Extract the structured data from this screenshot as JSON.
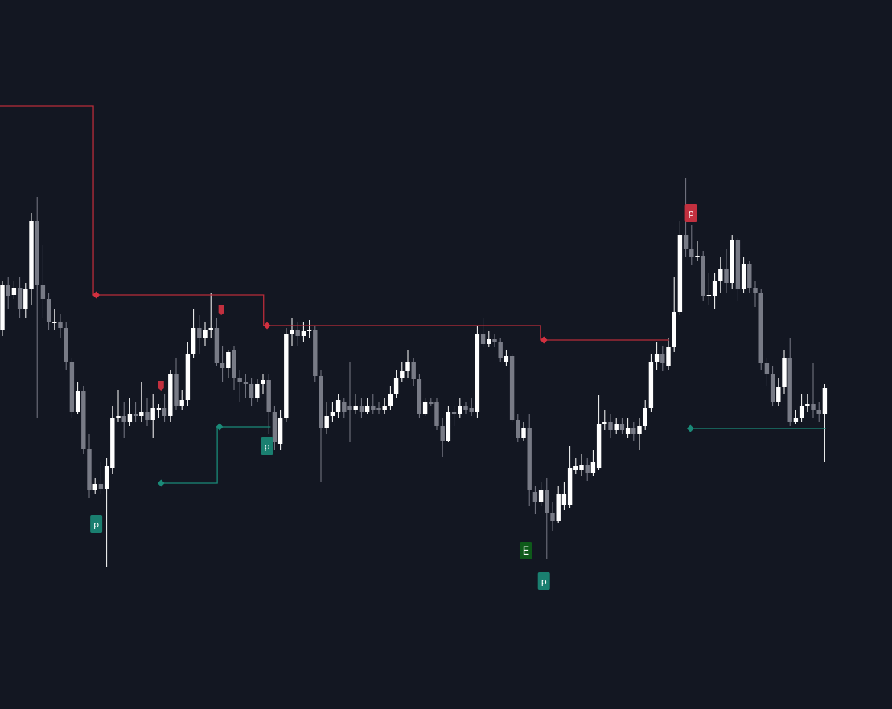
{
  "chart_data": {
    "type": "candlestick",
    "ylim": [
      0,
      882
    ],
    "up_color": "#ffffff",
    "down_color": "#787b86",
    "open": [
      472,
      527,
      515,
      524,
      497,
      522,
      607,
      527,
      510,
      480,
      482,
      474,
      432,
      370,
      396,
      324,
      272,
      280,
      274,
      300,
      362,
      364,
      357,
      367,
      364,
      370,
      360,
      372,
      374,
      364,
      417,
      377,
      384,
      442,
      474,
      462,
      472,
      474,
      430,
      424,
      446,
      412,
      407,
      404,
      387,
      404,
      409,
      370,
      330,
      362,
      467,
      472,
      464,
      470,
      472,
      414,
      350,
      364,
      370,
      382,
      377,
      372,
      377,
      370,
      377,
      374,
      372,
      377,
      392,
      412,
      420,
      432,
      410,
      367,
      382,
      382,
      352,
      334,
      370,
      367,
      377,
      374,
      370,
      467,
      454,
      460,
      457,
      432,
      439,
      360,
      337,
      350,
      270,
      257,
      272,
      244,
      234,
      254,
      254,
      297,
      297,
      304,
      294,
      300,
      354,
      357,
      347,
      354,
      342,
      350,
      342,
      352,
      374,
      432,
      442,
      427,
      450,
      494,
      590,
      572,
      562,
      564,
      514,
      514,
      532,
      547,
      530,
      584,
      522,
      554,
      524,
      517,
      430,
      417,
      382,
      400,
      437,
      357,
      362,
      377,
      380,
      372,
      367
    ],
    "high": [
      532,
      537,
      532,
      537,
      530,
      617,
      637,
      577,
      517,
      497,
      492,
      482,
      437,
      407,
      402,
      342,
      287,
      307,
      312,
      377,
      397,
      382,
      387,
      382,
      407,
      387,
      392,
      380,
      392,
      422,
      437,
      397,
      457,
      497,
      490,
      482,
      517,
      487,
      452,
      447,
      452,
      422,
      417,
      412,
      410,
      417,
      417,
      377,
      372,
      474,
      487,
      482,
      482,
      484,
      477,
      422,
      382,
      382,
      392,
      387,
      432,
      392,
      387,
      387,
      392,
      382,
      387,
      402,
      422,
      432,
      447,
      437,
      417,
      387,
      387,
      387,
      362,
      377,
      377,
      387,
      382,
      387,
      477,
      487,
      470,
      467,
      462,
      447,
      442,
      367,
      357,
      367,
      277,
      282,
      287,
      257,
      277,
      282,
      327,
      312,
      317,
      312,
      322,
      390,
      372,
      367,
      362,
      362,
      362,
      357,
      362,
      384,
      442,
      457,
      452,
      462,
      537,
      607,
      660,
      602,
      582,
      570,
      542,
      542,
      562,
      572,
      590,
      586,
      562,
      557,
      532,
      522,
      437,
      427,
      412,
      447,
      462,
      372,
      392,
      392,
      430,
      382,
      404
    ],
    "low": [
      464,
      497,
      510,
      487,
      487,
      502,
      362,
      487,
      472,
      472,
      462,
      422,
      362,
      367,
      317,
      262,
      267,
      267,
      177,
      292,
      357,
      337,
      352,
      357,
      357,
      352,
      337,
      362,
      357,
      357,
      372,
      372,
      377,
      437,
      442,
      452,
      462,
      427,
      407,
      412,
      397,
      382,
      387,
      377,
      382,
      392,
      342,
      322,
      322,
      357,
      452,
      452,
      457,
      462,
      407,
      282,
      342,
      357,
      362,
      362,
      332,
      367,
      362,
      367,
      367,
      367,
      367,
      372,
      387,
      407,
      412,
      402,
      362,
      364,
      377,
      347,
      314,
      332,
      352,
      362,
      367,
      364,
      362,
      450,
      450,
      450,
      432,
      427,
      357,
      332,
      334,
      252,
      242,
      252,
      187,
      222,
      232,
      247,
      250,
      292,
      290,
      284,
      290,
      297,
      347,
      337,
      342,
      342,
      337,
      334,
      322,
      347,
      370,
      422,
      420,
      422,
      444,
      490,
      562,
      552,
      557,
      507,
      502,
      497,
      517,
      517,
      522,
      507,
      517,
      517,
      500,
      422,
      402,
      377,
      377,
      392,
      352,
      354,
      357,
      370,
      362,
      357,
      307
    ],
    "close": [
      527,
      514,
      524,
      497,
      522,
      607,
      527,
      510,
      482,
      482,
      474,
      432,
      370,
      396,
      324,
      272,
      280,
      274,
      302,
      362,
      364,
      357,
      367,
      364,
      370,
      360,
      374,
      374,
      364,
      417,
      377,
      384,
      442,
      474,
      462,
      472,
      474,
      430,
      424,
      444,
      412,
      407,
      404,
      387,
      404,
      409,
      370,
      332,
      362,
      467,
      472,
      464,
      470,
      472,
      414,
      350,
      364,
      370,
      384,
      370,
      372,
      377,
      370,
      377,
      372,
      372,
      377,
      392,
      412,
      420,
      432,
      410,
      367,
      382,
      380,
      352,
      334,
      370,
      367,
      377,
      372,
      370,
      467,
      454,
      460,
      457,
      437,
      439,
      360,
      337,
      350,
      272,
      257,
      272,
      244,
      234,
      267,
      267,
      300,
      302,
      304,
      294,
      307,
      354,
      357,
      347,
      354,
      347,
      350,
      342,
      352,
      374,
      432,
      442,
      430,
      450,
      494,
      590,
      572,
      562,
      564,
      514,
      515,
      532,
      547,
      530,
      584,
      522,
      554,
      524,
      517,
      430,
      417,
      382,
      400,
      437,
      357,
      362,
      377,
      380,
      372,
      367,
      399
    ],
    "lines": [
      {
        "color": "#b82c3a",
        "x": [
          -0.5,
          15.7,
          15.7,
          45.1,
          45.1,
          92.9,
          92.9,
          115.1
        ],
        "values": [
          750,
          750,
          515,
          515,
          477,
          477,
          459,
          459
        ]
      },
      {
        "color": "#1a8a78",
        "x": [
          27.4,
          37.1,
          37.1,
          46.3
        ],
        "values": [
          281,
          281,
          351,
          351
        ]
      },
      {
        "color": "#1a8a78",
        "x": [
          118.8,
          142.2
        ],
        "values": [
          349,
          349
        ]
      }
    ],
    "diamonds": [
      {
        "x": 16.2,
        "value": 515,
        "color": "#d2303f"
      },
      {
        "x": 45.7,
        "value": 477,
        "color": "#d2303f"
      },
      {
        "x": 93.5,
        "value": 459,
        "color": "#d2303f"
      },
      {
        "x": 27.4,
        "value": 281,
        "color": "#1a8a78"
      },
      {
        "x": 37.5,
        "value": 351,
        "color": "#1a8a78"
      },
      {
        "x": 118.8,
        "value": 349,
        "color": "#1a8a78"
      }
    ],
    "markers": [
      {
        "text": "p",
        "x": 16.2,
        "value": 230,
        "color": "#1a7f70"
      },
      {
        "text": "p",
        "x": 45.7,
        "value": 327,
        "color": "#1a7f70"
      },
      {
        "text": "p",
        "x": 118.9,
        "value": 617,
        "color": "#c2303f"
      },
      {
        "text": "E",
        "x": 90.4,
        "value": 197,
        "color": "#0e5a1a"
      },
      {
        "text": "p",
        "x": 93.5,
        "value": 159,
        "color": "#1a7f70"
      }
    ],
    "flags": [
      {
        "x": 37.8,
        "value": 496,
        "color": "#c2303f"
      },
      {
        "x": 27.4,
        "value": 402,
        "color": "#c2303f"
      }
    ]
  }
}
